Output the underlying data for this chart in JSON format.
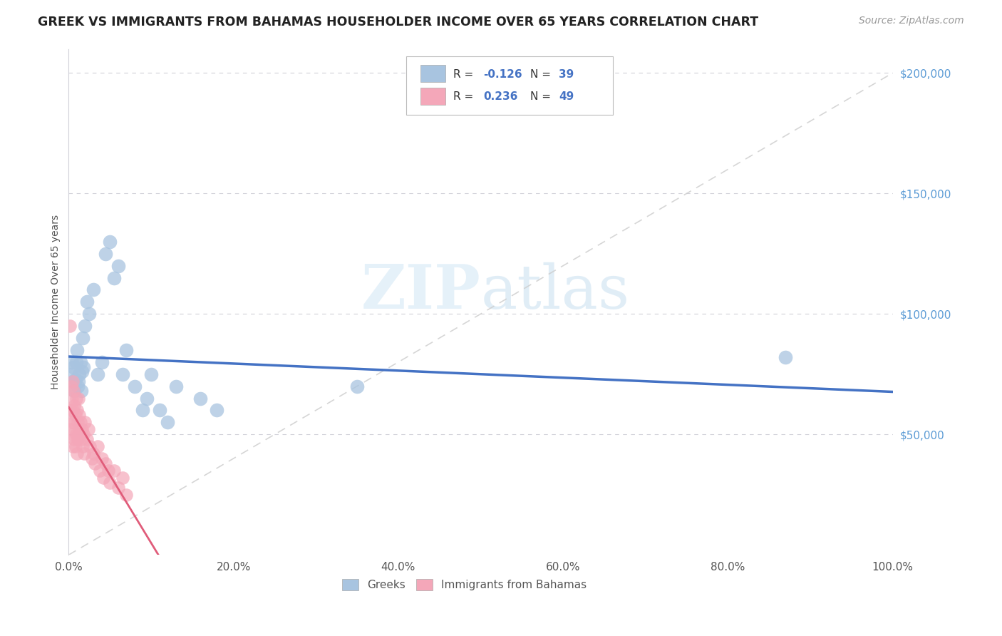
{
  "title": "GREEK VS IMMIGRANTS FROM BAHAMAS HOUSEHOLDER INCOME OVER 65 YEARS CORRELATION CHART",
  "source": "Source: ZipAtlas.com",
  "ylabel": "Householder Income Over 65 years",
  "xlim": [
    0,
    1.0
  ],
  "ylim": [
    0,
    210000
  ],
  "xticks": [
    0.0,
    0.2,
    0.4,
    0.6,
    0.8,
    1.0
  ],
  "xticklabels": [
    "0.0%",
    "20.0%",
    "40.0%",
    "60.0%",
    "80.0%",
    "100.0%"
  ],
  "ytick_labels_right": [
    "$50,000",
    "$100,000",
    "$150,000",
    "$200,000"
  ],
  "ytick_values_right": [
    50000,
    100000,
    150000,
    200000
  ],
  "legend1_R": "-0.126",
  "legend1_N": "39",
  "legend2_R": "0.236",
  "legend2_N": "49",
  "blue_color": "#a8c4e0",
  "pink_color": "#f4a7b9",
  "blue_line_color": "#4472c4",
  "pink_line_color": "#e05c7a",
  "watermark_zip": "ZIP",
  "watermark_atlas": "atlas",
  "greek_x": [
    0.003,
    0.004,
    0.005,
    0.006,
    0.007,
    0.008,
    0.009,
    0.01,
    0.011,
    0.012,
    0.013,
    0.014,
    0.015,
    0.016,
    0.017,
    0.018,
    0.02,
    0.022,
    0.025,
    0.03,
    0.035,
    0.04,
    0.045,
    0.05,
    0.055,
    0.06,
    0.065,
    0.07,
    0.08,
    0.09,
    0.095,
    0.1,
    0.11,
    0.12,
    0.13,
    0.16,
    0.18,
    0.35,
    0.87
  ],
  "greek_y": [
    75000,
    80000,
    72000,
    78000,
    68000,
    73000,
    80000,
    85000,
    70000,
    72000,
    75000,
    80000,
    68000,
    76000,
    90000,
    78000,
    95000,
    105000,
    100000,
    110000,
    75000,
    80000,
    125000,
    130000,
    115000,
    120000,
    75000,
    85000,
    70000,
    60000,
    65000,
    75000,
    60000,
    55000,
    70000,
    65000,
    60000,
    70000,
    82000
  ],
  "bahamas_x": [
    0.001,
    0.002,
    0.002,
    0.003,
    0.003,
    0.004,
    0.004,
    0.005,
    0.005,
    0.005,
    0.006,
    0.006,
    0.007,
    0.007,
    0.008,
    0.008,
    0.009,
    0.009,
    0.01,
    0.01,
    0.011,
    0.011,
    0.012,
    0.012,
    0.013,
    0.014,
    0.015,
    0.016,
    0.017,
    0.018,
    0.019,
    0.02,
    0.022,
    0.024,
    0.026,
    0.028,
    0.03,
    0.032,
    0.035,
    0.038,
    0.04,
    0.042,
    0.045,
    0.048,
    0.05,
    0.055,
    0.06,
    0.065,
    0.07
  ],
  "bahamas_y": [
    95000,
    60000,
    52000,
    70000,
    55000,
    65000,
    50000,
    72000,
    60000,
    45000,
    68000,
    55000,
    62000,
    48000,
    58000,
    45000,
    65000,
    50000,
    60000,
    42000,
    55000,
    48000,
    65000,
    50000,
    58000,
    55000,
    48000,
    52000,
    45000,
    50000,
    42000,
    55000,
    48000,
    52000,
    45000,
    40000,
    42000,
    38000,
    45000,
    35000,
    40000,
    32000,
    38000,
    35000,
    30000,
    35000,
    28000,
    32000,
    25000
  ]
}
